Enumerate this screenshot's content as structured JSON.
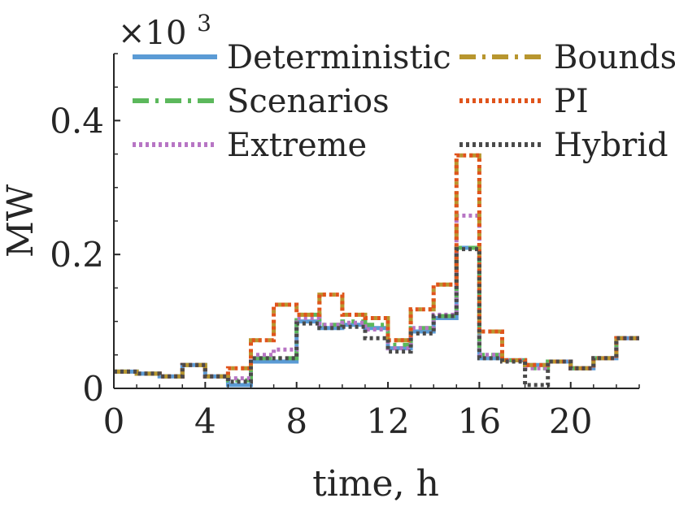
{
  "chart_data": {
    "type": "line",
    "step": true,
    "title": "",
    "xlabel": "time, h",
    "ylabel": "MW",
    "y_multiplier": {
      "base": "×10",
      "exponent": "3"
    },
    "xlim": [
      0,
      23
    ],
    "ylim": [
      0,
      0.5
    ],
    "xticks": [
      0,
      4,
      8,
      12,
      16,
      20
    ],
    "xtick_labels": [
      "0",
      "4",
      "8",
      "12",
      "16",
      "20"
    ],
    "yticks": [
      0,
      0.2,
      0.4
    ],
    "ytick_labels": [
      "0",
      "0.2",
      "0.4"
    ],
    "grid": false,
    "legend_position": "top",
    "x": [
      0,
      1,
      2,
      3,
      4,
      5,
      6,
      7,
      8,
      9,
      10,
      11,
      12,
      13,
      14,
      15,
      16,
      17,
      18,
      19,
      20,
      21,
      22
    ],
    "series": [
      {
        "name": "Deterministic",
        "color": "#5b9bd5",
        "dash": "solid",
        "values": [
          0.025,
          0.022,
          0.018,
          0.035,
          0.018,
          0.005,
          0.04,
          0.04,
          0.1,
          0.09,
          0.095,
          0.09,
          0.06,
          0.085,
          0.105,
          0.21,
          0.045,
          0.042,
          0.035,
          0.04,
          0.03,
          0.045,
          0.075
        ]
      },
      {
        "name": "Scenarios",
        "color": "#5cb85c",
        "dash": "dashdot",
        "values": [
          0.025,
          0.022,
          0.018,
          0.035,
          0.018,
          0.012,
          0.045,
          0.045,
          0.11,
          0.095,
          0.1,
          0.095,
          0.065,
          0.09,
          0.108,
          0.21,
          0.05,
          0.042,
          0.03,
          0.04,
          0.03,
          0.045,
          0.075
        ]
      },
      {
        "name": "Extreme",
        "color": "#b775c4",
        "dash": "dotted",
        "values": [
          0.025,
          0.022,
          0.018,
          0.035,
          0.018,
          0.015,
          0.05,
          0.058,
          0.105,
          0.095,
          0.098,
          0.088,
          0.06,
          0.09,
          0.11,
          0.258,
          0.05,
          0.042,
          0.03,
          0.04,
          0.03,
          0.045,
          0.075
        ]
      },
      {
        "name": "Bounds",
        "color": "#b8962e",
        "dash": "dashdot",
        "values": [
          0.025,
          0.022,
          0.018,
          0.035,
          0.018,
          0.03,
          0.072,
          0.125,
          0.11,
          0.14,
          0.11,
          0.105,
          0.072,
          0.118,
          0.155,
          0.348,
          0.085,
          0.042,
          0.035,
          0.04,
          0.03,
          0.045,
          0.075
        ]
      },
      {
        "name": "PI",
        "color": "#e0541c",
        "dash": "dotted",
        "values": [
          0.025,
          0.022,
          0.018,
          0.035,
          0.018,
          0.03,
          0.072,
          0.125,
          0.11,
          0.14,
          0.11,
          0.105,
          0.072,
          0.118,
          0.155,
          0.348,
          0.085,
          0.042,
          0.035,
          0.04,
          0.03,
          0.045,
          0.075
        ]
      },
      {
        "name": "Hybrid",
        "color": "#4a4a4a",
        "dash": "dotted",
        "values": [
          0.025,
          0.022,
          0.018,
          0.035,
          0.018,
          0.01,
          0.045,
          0.045,
          0.097,
          0.09,
          0.092,
          0.075,
          0.055,
          0.082,
          0.108,
          0.208,
          0.045,
          0.04,
          0.005,
          0.04,
          0.03,
          0.045,
          0.075
        ]
      }
    ]
  }
}
